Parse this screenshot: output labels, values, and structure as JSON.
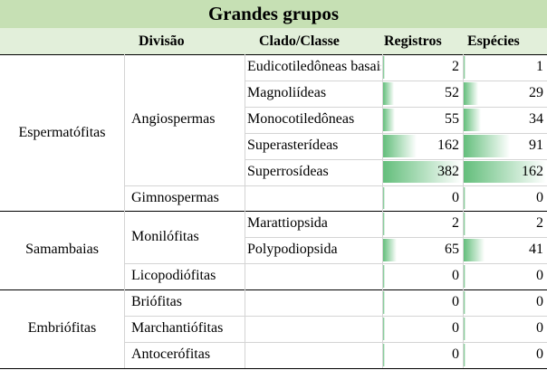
{
  "title": "Grandes grupos",
  "headers": {
    "divisao": "Divisão",
    "clado": "Clado/Classe",
    "registros": "Registros",
    "especies": "Espécies"
  },
  "groups": [
    {
      "name": "Espermatófitas"
    },
    {
      "name": "Samambaias"
    },
    {
      "name": "Embriófitas"
    }
  ],
  "divisions": [
    {
      "name": "Angiospermas"
    },
    {
      "name": "Gimnospermas"
    },
    {
      "name": "Monilófitas"
    },
    {
      "name": "Licopodiófitas"
    },
    {
      "name": "Briófitas"
    },
    {
      "name": "Marchantiófitas"
    },
    {
      "name": "Antocerófitas"
    }
  ],
  "rows": [
    {
      "clado": "Eudicotiledôneas basais",
      "registros": "2",
      "especies": "1",
      "reg_level": 0.005,
      "esp_level": 0.006
    },
    {
      "clado": "Magnoliídeas",
      "registros": "52",
      "especies": "29",
      "reg_level": 0.136,
      "esp_level": 0.179
    },
    {
      "clado": "Monocotiledôneas",
      "registros": "55",
      "especies": "34",
      "reg_level": 0.144,
      "esp_level": 0.21
    },
    {
      "clado": "Superasterídeas",
      "registros": "162",
      "especies": "91",
      "reg_level": 0.424,
      "esp_level": 0.562
    },
    {
      "clado": "Superrosídeas",
      "registros": "382",
      "especies": "162",
      "reg_level": 1.0,
      "esp_level": 1.0
    },
    {
      "clado": "",
      "registros": "0",
      "especies": "0",
      "reg_level": 0,
      "esp_level": 0
    },
    {
      "clado": "Marattiopsida",
      "registros": "2",
      "especies": "2",
      "reg_level": 0.005,
      "esp_level": 0.012
    },
    {
      "clado": "Polypodiopsida",
      "registros": "65",
      "especies": "41",
      "reg_level": 0.17,
      "esp_level": 0.253
    },
    {
      "clado": "",
      "registros": "0",
      "especies": "0",
      "reg_level": 0,
      "esp_level": 0
    },
    {
      "clado": "",
      "registros": "0",
      "especies": "0",
      "reg_level": 0,
      "esp_level": 0
    },
    {
      "clado": "",
      "registros": "0",
      "especies": "0",
      "reg_level": 0,
      "esp_level": 0
    },
    {
      "clado": "",
      "registros": "0",
      "especies": "0",
      "reg_level": 0,
      "esp_level": 0
    }
  ],
  "colors": {
    "title_bg": "#c6e0b4",
    "header_bg": "#e2efda",
    "bar": "#63be7b"
  }
}
